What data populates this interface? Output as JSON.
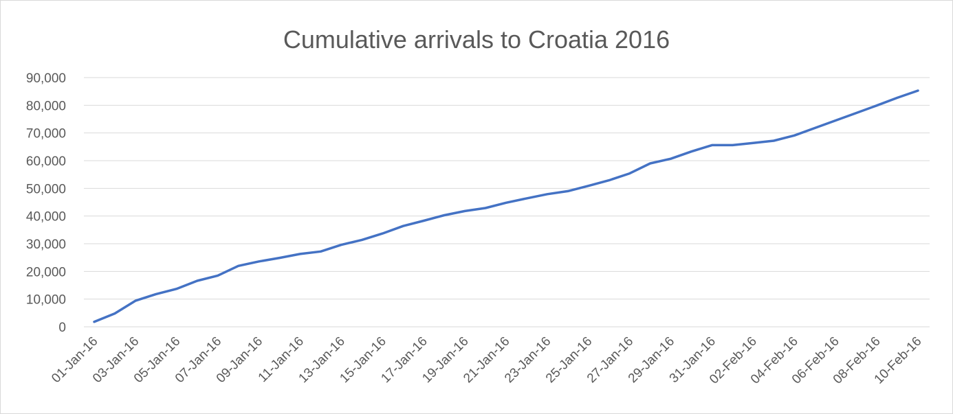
{
  "chart_data": {
    "type": "line",
    "title": "Cumulative arrivals to Croatia 2016",
    "xlabel": "",
    "ylabel": "",
    "ylim": [
      0,
      90000
    ],
    "y_ticks": [
      0,
      10000,
      20000,
      30000,
      40000,
      50000,
      60000,
      70000,
      80000,
      90000
    ],
    "y_tick_labels": [
      "0",
      "10,000",
      "20,000",
      "30,000",
      "40,000",
      "50,000",
      "60,000",
      "70,000",
      "80,000",
      "90,000"
    ],
    "grid": true,
    "legend": "none",
    "x_tick_labels": [
      "01-Jan-16",
      "03-Jan-16",
      "05-Jan-16",
      "07-Jan-16",
      "09-Jan-16",
      "11-Jan-16",
      "13-Jan-16",
      "15-Jan-16",
      "17-Jan-16",
      "19-Jan-16",
      "21-Jan-16",
      "23-Jan-16",
      "25-Jan-16",
      "27-Jan-16",
      "29-Jan-16",
      "31-Jan-16",
      "02-Feb-16",
      "04-Feb-16",
      "06-Feb-16",
      "08-Feb-16",
      "10-Feb-16"
    ],
    "x": [
      "01-Jan-16",
      "02-Jan-16",
      "03-Jan-16",
      "04-Jan-16",
      "05-Jan-16",
      "06-Jan-16",
      "07-Jan-16",
      "08-Jan-16",
      "09-Jan-16",
      "10-Jan-16",
      "11-Jan-16",
      "12-Jan-16",
      "13-Jan-16",
      "14-Jan-16",
      "15-Jan-16",
      "16-Jan-16",
      "17-Jan-16",
      "18-Jan-16",
      "19-Jan-16",
      "20-Jan-16",
      "21-Jan-16",
      "22-Jan-16",
      "23-Jan-16",
      "24-Jan-16",
      "25-Jan-16",
      "26-Jan-16",
      "27-Jan-16",
      "28-Jan-16",
      "29-Jan-16",
      "30-Jan-16",
      "31-Jan-16",
      "01-Feb-16",
      "02-Feb-16",
      "03-Feb-16",
      "04-Feb-16",
      "05-Feb-16",
      "06-Feb-16",
      "07-Feb-16",
      "08-Feb-16",
      "09-Feb-16",
      "10-Feb-16"
    ],
    "series": [
      {
        "values": [
          1800,
          4800,
          9400,
          11800,
          13700,
          16600,
          18500,
          22000,
          23600,
          24900,
          26300,
          27200,
          29600,
          31400,
          33700,
          36400,
          38300,
          40300,
          41800,
          42900,
          44800,
          46400,
          47900,
          49000,
          50900,
          52900,
          55400,
          59000,
          60700,
          63300,
          65600,
          65600,
          66400,
          67200,
          69100,
          71800,
          74500,
          77200,
          79900,
          82700,
          85300
        ],
        "color": "#4472c4"
      }
    ]
  }
}
